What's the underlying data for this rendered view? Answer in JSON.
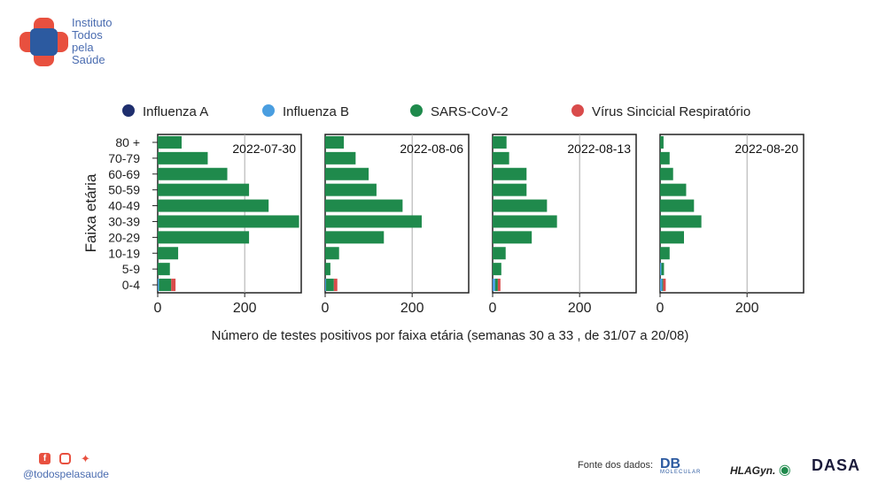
{
  "logo": {
    "text_lines": [
      "Instituto",
      "Todos",
      "pela",
      "Saúde"
    ]
  },
  "chart_data": {
    "type": "bar",
    "orientation": "horizontal",
    "stacked": true,
    "ylabel": "Faixa etária",
    "xlabel": "Número de testes positivos por faixa etária (semanas 30 a 33 , de 31/07 a 20/08)",
    "categories": [
      "80 +",
      "70-79",
      "60-69",
      "50-59",
      "40-49",
      "30-39",
      "20-29",
      "10-19",
      "5-9",
      "0-4"
    ],
    "xlim": [
      0,
      330
    ],
    "xticks": [
      0,
      200
    ],
    "legend": [
      {
        "name": "Influenza A",
        "color": "#1f2f6e"
      },
      {
        "name": "Influenza B",
        "color": "#4a9ee0"
      },
      {
        "name": "SARS-CoV-2",
        "color": "#1f8a4c"
      },
      {
        "name": "Vírus Sincicial Respiratório",
        "color": "#d94b4b"
      }
    ],
    "legend_position": "top",
    "vertical_reference_line": 200,
    "panels": [
      {
        "label": "2022-07-30",
        "series": [
          {
            "name": "Influenza A",
            "values": [
              0,
              0,
              0,
              0,
              0,
              0,
              0,
              0,
              0,
              0
            ]
          },
          {
            "name": "Influenza B",
            "values": [
              0,
              0,
              0,
              0,
              0,
              0,
              0,
              0,
              0,
              3
            ]
          },
          {
            "name": "SARS-CoV-2",
            "values": [
              55,
              115,
              160,
              210,
              255,
              325,
              210,
              47,
              28,
              28
            ]
          },
          {
            "name": "Vírus Sincicial Respiratório",
            "values": [
              0,
              0,
              0,
              0,
              0,
              0,
              0,
              0,
              0,
              10
            ]
          }
        ]
      },
      {
        "label": "2022-08-06",
        "series": [
          {
            "name": "Influenza A",
            "values": [
              0,
              0,
              0,
              0,
              0,
              0,
              0,
              0,
              0,
              0
            ]
          },
          {
            "name": "Influenza B",
            "values": [
              0,
              0,
              0,
              0,
              0,
              0,
              0,
              0,
              0,
              2
            ]
          },
          {
            "name": "SARS-CoV-2",
            "values": [
              43,
              70,
              100,
              118,
              178,
              222,
              135,
              32,
              12,
              18
            ]
          },
          {
            "name": "Vírus Sincicial Respiratório",
            "values": [
              0,
              0,
              0,
              0,
              0,
              0,
              0,
              0,
              0,
              8
            ]
          }
        ]
      },
      {
        "label": "2022-08-13",
        "series": [
          {
            "name": "Influenza A",
            "values": [
              0,
              0,
              0,
              0,
              0,
              0,
              0,
              0,
              0,
              0
            ]
          },
          {
            "name": "Influenza B",
            "values": [
              0,
              0,
              0,
              0,
              0,
              0,
              0,
              0,
              0,
              6
            ]
          },
          {
            "name": "SARS-CoV-2",
            "values": [
              32,
              38,
              78,
              78,
              125,
              148,
              90,
              30,
              20,
              6
            ]
          },
          {
            "name": "Vírus Sincicial Respiratório",
            "values": [
              0,
              0,
              0,
              0,
              0,
              0,
              0,
              0,
              0,
              6
            ]
          }
        ]
      },
      {
        "label": "2022-08-20",
        "series": [
          {
            "name": "Influenza A",
            "values": [
              0,
              0,
              0,
              0,
              0,
              0,
              0,
              0,
              0,
              0
            ]
          },
          {
            "name": "Influenza B",
            "values": [
              0,
              0,
              0,
              0,
              0,
              0,
              0,
              0,
              3,
              5
            ]
          },
          {
            "name": "SARS-CoV-2",
            "values": [
              8,
              22,
              30,
              60,
              78,
              95,
              55,
              22,
              6,
              2
            ]
          },
          {
            "name": "Vírus Sincicial Respiratório",
            "values": [
              0,
              0,
              0,
              0,
              0,
              0,
              0,
              0,
              0,
              6
            ]
          }
        ]
      }
    ]
  },
  "footer": {
    "handle": "@todospelasaude",
    "social_icons": [
      "facebook-icon",
      "instagram-icon",
      "twitter-icon"
    ],
    "source_label": "Fonte dos dados:",
    "sources": [
      "DB",
      "MOLECULAR",
      "HLAGyn.",
      "DASA"
    ]
  }
}
